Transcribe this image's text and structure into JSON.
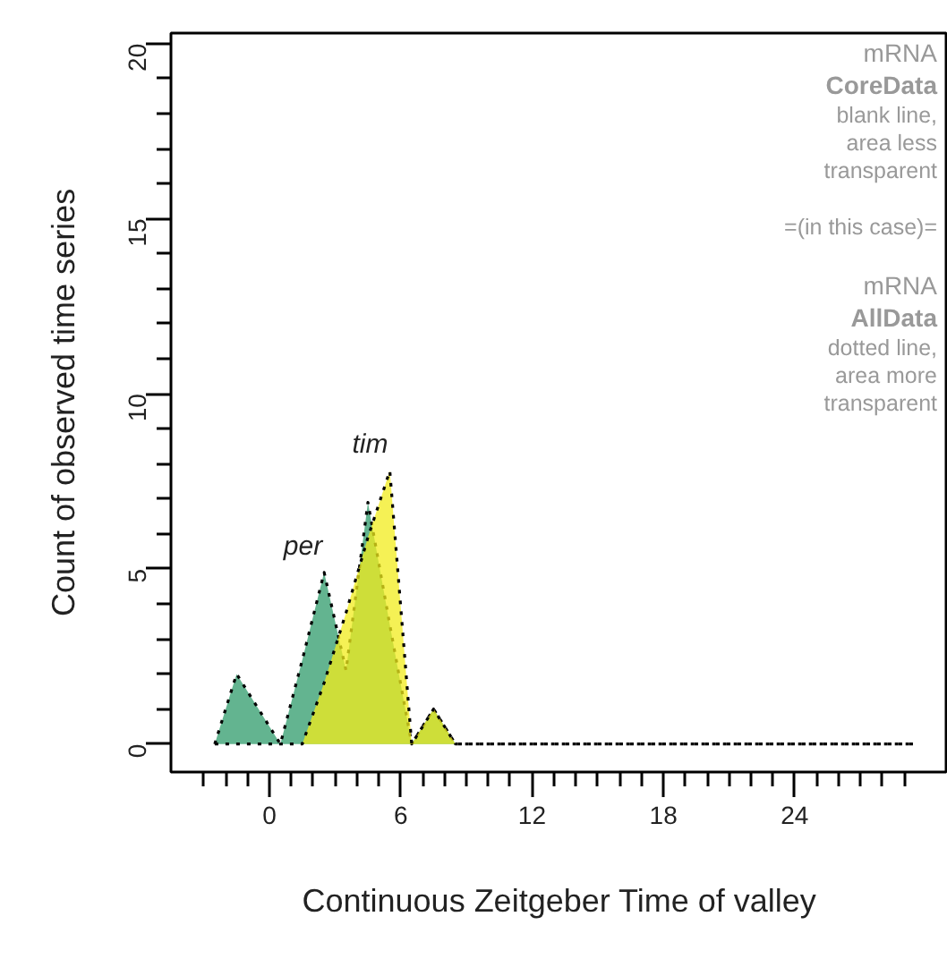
{
  "chart_data": {
    "type": "area",
    "xlabel": "Continuous Zeitgeber Time of valley",
    "ylabel": "Count of observed time series",
    "x": [
      -2.5,
      -1.5,
      -0.5,
      0.5,
      1.5,
      2.5,
      3.5,
      4.5,
      5.5,
      6.5,
      7.5,
      8.5,
      9.5,
      10.5,
      11.5,
      12.5,
      13.5,
      14.5,
      15.5,
      16.5,
      17.5,
      18.5,
      19.5,
      20.5,
      21.5,
      22.5,
      23.5,
      24.5,
      25.5,
      26.5,
      27.5,
      28.5,
      29.5
    ],
    "series": [
      {
        "name": "per",
        "color": "#5bb08a",
        "values": [
          0,
          2,
          1,
          0,
          2.4,
          4.9,
          2.1,
          6.9,
          3.4,
          0,
          1,
          0,
          0,
          0,
          0,
          0,
          0,
          0,
          0,
          0,
          0,
          0,
          0,
          0,
          0,
          0,
          0,
          0,
          0,
          0,
          0,
          0,
          0
        ]
      },
      {
        "name": "tim",
        "color": "#f2ec1c",
        "values": [
          0,
          0,
          0,
          0,
          0,
          1.75,
          3.75,
          5.9,
          7.8,
          0,
          1,
          0,
          0,
          0,
          0,
          0,
          0,
          0,
          0,
          0,
          0,
          0,
          0,
          0,
          0,
          0,
          0,
          0,
          0,
          0,
          0,
          0,
          0
        ]
      }
    ],
    "xlim": [
      -4.5,
      31
    ],
    "ylim": [
      -0.8,
      20.3
    ],
    "xticks": [
      {
        "value": -3,
        "label": null
      },
      {
        "value": -2,
        "label": null
      },
      {
        "value": -1,
        "label": null
      },
      0,
      {
        "value": 1,
        "label": null
      },
      {
        "value": 2,
        "label": null
      },
      {
        "value": 3,
        "label": null
      },
      {
        "value": 4,
        "label": null
      },
      {
        "value": 5,
        "label": null
      },
      6,
      {
        "value": 7,
        "label": null
      },
      {
        "value": 8,
        "label": null
      },
      {
        "value": 9,
        "label": null
      },
      {
        "value": 10,
        "label": null
      },
      {
        "value": 11,
        "label": null
      },
      12,
      {
        "value": 13,
        "label": null
      },
      {
        "value": 14,
        "label": null
      },
      {
        "value": 15,
        "label": null
      },
      {
        "value": 16,
        "label": null
      },
      {
        "value": 17,
        "label": null
      },
      18,
      {
        "value": 19,
        "label": null
      },
      {
        "value": 20,
        "label": null
      },
      {
        "value": 21,
        "label": null
      },
      {
        "value": 22,
        "label": null
      },
      {
        "value": 23,
        "label": null
      },
      24,
      {
        "value": 25,
        "label": null
      },
      {
        "value": 26,
        "label": null
      },
      {
        "value": 27,
        "label": null
      },
      {
        "value": 28,
        "label": null
      },
      {
        "value": 29,
        "label": null
      }
    ],
    "yticks": [
      0,
      {
        "value": 1,
        "label": null
      },
      {
        "value": 2,
        "label": null
      },
      {
        "value": 3,
        "label": null
      },
      {
        "value": 4,
        "label": null
      },
      5,
      {
        "value": 6,
        "label": null
      },
      {
        "value": 7,
        "label": null
      },
      {
        "value": 8,
        "label": null
      },
      {
        "value": 9,
        "label": null
      },
      10,
      {
        "value": 11,
        "label": null
      },
      {
        "value": 12,
        "label": null
      },
      {
        "value": 13,
        "label": null
      },
      {
        "value": 14,
        "label": null
      },
      15,
      {
        "value": 16,
        "label": null
      },
      {
        "value": 17,
        "label": null
      },
      {
        "value": 18,
        "label": null
      },
      {
        "value": 19,
        "label": null
      },
      20
    ],
    "line_style": "dotted",
    "grid": false,
    "annotations": [
      "mRNA",
      "CoreData",
      "blank line,",
      "area less",
      "transparent",
      "=(in this case)=",
      "mRNA",
      "AllData",
      "dotted line,",
      "area more",
      "transparent"
    ]
  }
}
